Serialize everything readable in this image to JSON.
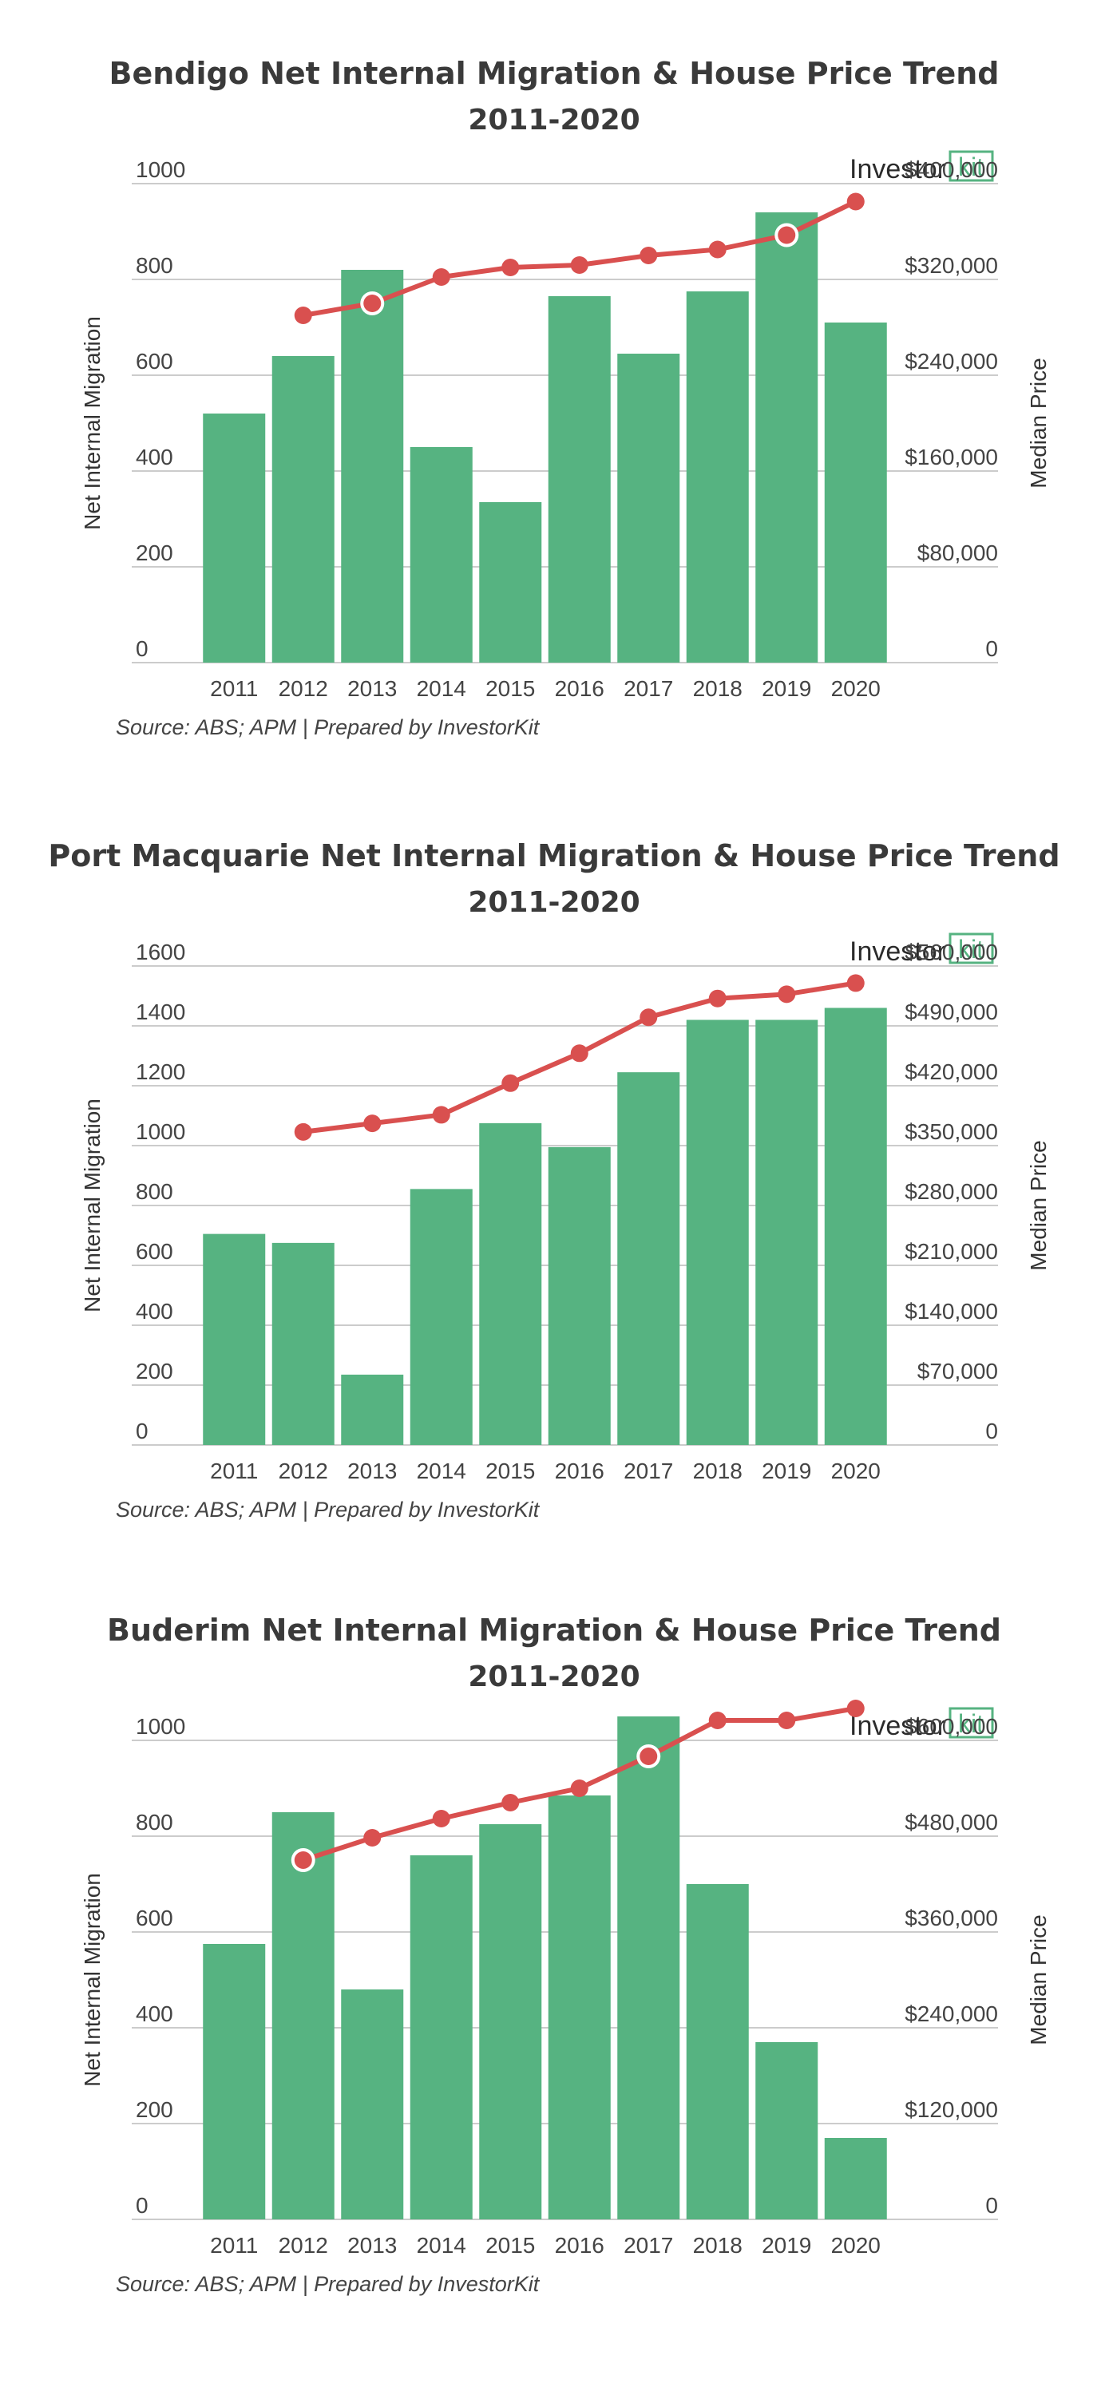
{
  "brand": {
    "logo_text": "Investor",
    "logo_mark": "kit",
    "bar_color": "#56b381",
    "line_color": "#d9504f",
    "grid_color": "#cccccc",
    "logo_color": "#56b381"
  },
  "chart_data": [
    {
      "type": "bar",
      "title": "Bendigo Net Internal Migration & House Price Trend",
      "subtitle": "2011-2020",
      "ylabel": "Net Internal Migration",
      "y2label": "Median Price",
      "source": "Source: ABS; APM | Prepared by InvestorKit",
      "categories": [
        "2011",
        "2012",
        "2013",
        "2014",
        "2015",
        "2016",
        "2017",
        "2018",
        "2019",
        "2020"
      ],
      "ylim": [
        0,
        1000
      ],
      "y_ticks": [
        "0",
        "200",
        "400",
        "600",
        "800",
        "1000"
      ],
      "y2lim": [
        0,
        400000
      ],
      "y2_ticks": [
        "0",
        "$80,000",
        "$160,000",
        "$240,000",
        "$320,000",
        "$400,000"
      ],
      "series": [
        {
          "name": "Net Internal Migration",
          "type": "bar",
          "values": [
            520,
            640,
            820,
            450,
            335,
            765,
            645,
            775,
            940,
            710
          ]
        },
        {
          "name": "Median Price",
          "type": "line",
          "axis": "right",
          "values": [
            null,
            290000,
            300000,
            322000,
            330000,
            332000,
            340000,
            345000,
            357000,
            385000
          ],
          "highlight": [
            2,
            8
          ]
        }
      ]
    },
    {
      "type": "bar",
      "title": "Port Macquarie Net Internal Migration & House Price Trend",
      "subtitle": "2011-2020",
      "ylabel": "Net Internal Migration",
      "y2label": "Median Price",
      "source": "Source: ABS; APM | Prepared by InvestorKit",
      "categories": [
        "2011",
        "2012",
        "2013",
        "2014",
        "2015",
        "2016",
        "2017",
        "2018",
        "2019",
        "2020"
      ],
      "ylim": [
        0,
        1600
      ],
      "y_ticks": [
        "0",
        "200",
        "400",
        "600",
        "800",
        "1000",
        "1200",
        "1400",
        "1600"
      ],
      "y2lim": [
        0,
        560000
      ],
      "y2_ticks": [
        "0",
        "$70,000",
        "$140,000",
        "$210,000",
        "$280,000",
        "$350,000",
        "$420,000",
        "$490,000",
        "$560,000"
      ],
      "series": [
        {
          "name": "Net Internal Migration",
          "type": "bar",
          "values": [
            705,
            675,
            235,
            855,
            1075,
            995,
            1245,
            1420,
            1420,
            1460
          ]
        },
        {
          "name": "Median Price",
          "type": "line",
          "axis": "right",
          "values": [
            null,
            366000,
            376000,
            386000,
            423000,
            458000,
            500000,
            522000,
            527000,
            540000
          ],
          "highlight": []
        }
      ]
    },
    {
      "type": "bar",
      "title": "Buderim Net Internal Migration & House Price Trend",
      "subtitle": "2011-2020",
      "ylabel": "Net Internal Migration",
      "y2label": "Median Price",
      "source": "Source: ABS; APM | Prepared by InvestorKit",
      "categories": [
        "2011",
        "2012",
        "2013",
        "2014",
        "2015",
        "2016",
        "2017",
        "2018",
        "2019",
        "2020"
      ],
      "ylim": [
        0,
        1000
      ],
      "y_ticks": [
        "0",
        "200",
        "400",
        "600",
        "800",
        "1000"
      ],
      "y2lim": [
        0,
        600000
      ],
      "y2_ticks": [
        "0",
        "$120,000",
        "$240,000",
        "$360,000",
        "$480,000",
        "$600,000"
      ],
      "series": [
        {
          "name": "Net Internal Migration",
          "type": "bar",
          "values": [
            575,
            850,
            480,
            760,
            825,
            885,
            1050,
            700,
            370,
            170
          ]
        },
        {
          "name": "Median Price",
          "type": "line",
          "axis": "right",
          "values": [
            null,
            450000,
            478000,
            502000,
            522000,
            540000,
            580000,
            625000,
            625000,
            640000
          ],
          "highlight": [
            1,
            6
          ]
        }
      ]
    }
  ]
}
